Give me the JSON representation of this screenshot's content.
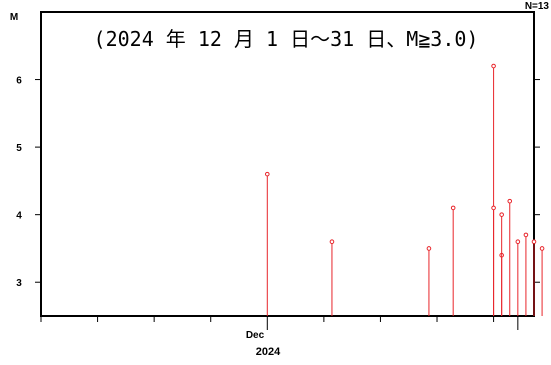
{
  "chart_data": {
    "type": "scatter",
    "style": "stem",
    "title": "(2024 年 12 月 1 日～31 日、M≧3.0)",
    "count_label": "N=13",
    "ylabel": "M",
    "ylim": [
      2.5,
      7.0
    ],
    "yticks": [
      3,
      4,
      5,
      6
    ],
    "x_range": [
      "2024-11-03",
      "2025-01-03"
    ],
    "x_tick_label": "Dec",
    "x_year_label": "2024",
    "marker_color": "#e8242a",
    "axis_color": "#000000",
    "grid": false,
    "points": [
      {
        "date": "2024-12-01",
        "m": 4.6
      },
      {
        "date": "2024-12-09",
        "m": 3.6
      },
      {
        "date": "2024-12-21",
        "m": 3.5
      },
      {
        "date": "2024-12-24",
        "m": 4.1
      },
      {
        "date": "2024-12-29",
        "m": 6.2
      },
      {
        "date": "2024-12-29",
        "m": 4.1
      },
      {
        "date": "2024-12-30",
        "m": 3.4
      },
      {
        "date": "2024-12-30",
        "m": 4.0
      },
      {
        "date": "2024-12-31",
        "m": 4.2
      },
      {
        "date": "2025-01-01",
        "m": 3.6
      },
      {
        "date": "2025-01-02",
        "m": 3.7
      },
      {
        "date": "2025-01-03",
        "m": 3.6
      },
      {
        "date": "2025-01-04",
        "m": 3.5
      }
    ]
  }
}
